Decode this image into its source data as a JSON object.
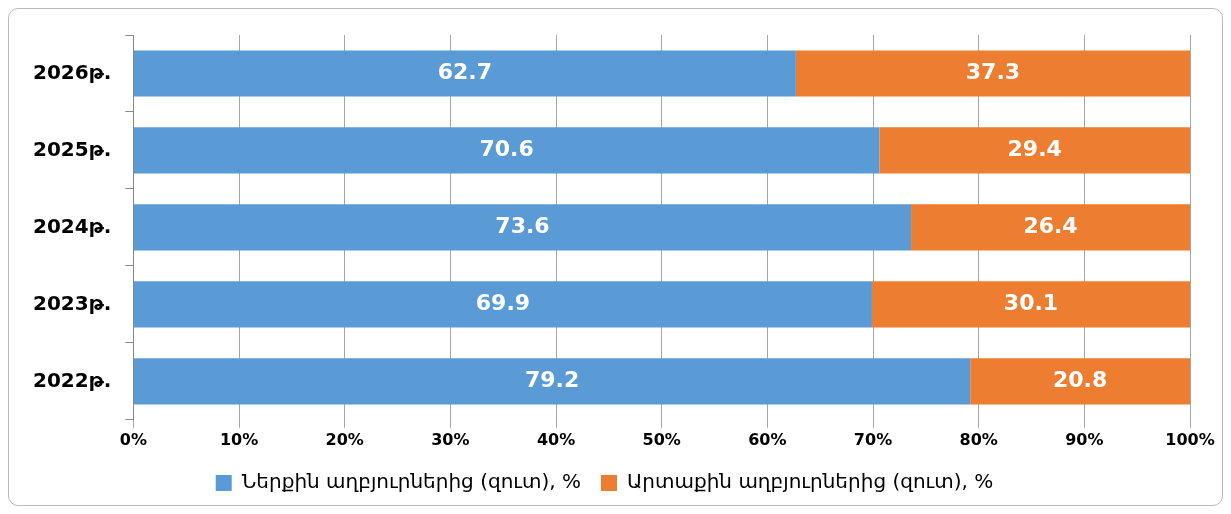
{
  "chart_data": {
    "type": "bar",
    "orientation": "horizontal",
    "stacked": true,
    "categories": [
      "2026թ.",
      "2025թ.",
      "2024թ.",
      "2023թ.",
      "2022թ."
    ],
    "series": [
      {
        "name": "Ներքին աղբյուրներից (զուտ), %",
        "color": "#5b9bd5",
        "values": [
          62.7,
          70.6,
          73.6,
          69.9,
          79.2
        ]
      },
      {
        "name": "Արտաքին աղբյուրներից (զուտ), %",
        "color": "#ed7d31",
        "values": [
          37.3,
          29.4,
          26.4,
          30.1,
          20.8
        ]
      }
    ],
    "xlim": [
      0,
      100
    ],
    "xticks": [
      {
        "value": 0,
        "label": "0%"
      },
      {
        "value": 10,
        "label": "10%"
      },
      {
        "value": 20,
        "label": "20%"
      },
      {
        "value": 30,
        "label": "30%"
      },
      {
        "value": 40,
        "label": "40%"
      },
      {
        "value": 50,
        "label": "50%"
      },
      {
        "value": 60,
        "label": "60%"
      },
      {
        "value": 70,
        "label": "70%"
      },
      {
        "value": 80,
        "label": "80%"
      },
      {
        "value": 90,
        "label": "90%"
      },
      {
        "value": 100,
        "label": "100%"
      }
    ],
    "grid": "x",
    "legend": "bottom",
    "data_labels": true
  }
}
